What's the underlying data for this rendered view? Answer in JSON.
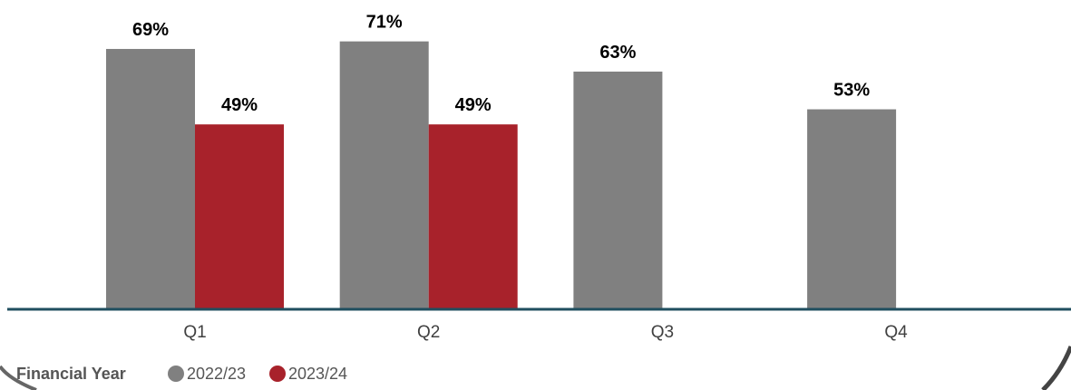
{
  "chart_data": {
    "type": "bar",
    "categories": [
      "Q1",
      "Q2",
      "Q3",
      "Q4"
    ],
    "series": [
      {
        "name": "2022/23",
        "values": [
          69,
          71,
          63,
          53
        ],
        "labels": [
          "69%",
          "71%",
          "63%",
          "53%"
        ],
        "color": "#808080"
      },
      {
        "name": "2023/24",
        "values": [
          49,
          49,
          null,
          null
        ],
        "labels": [
          "49%",
          "49%",
          "",
          ""
        ],
        "color": "#A8222B"
      }
    ],
    "ylim": [
      0,
      100
    ],
    "grid": false,
    "axis_color": "#1F4E5F",
    "legend": {
      "title": "Financial Year",
      "position": "bottom-left"
    }
  }
}
